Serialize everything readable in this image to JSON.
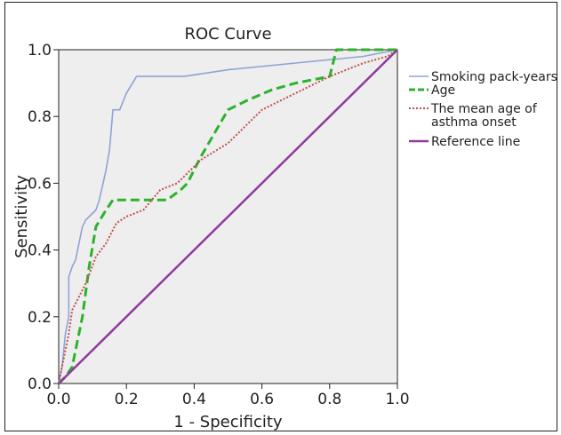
{
  "chart_data": {
    "type": "line",
    "title": "ROC Curve",
    "xlabel": "1 - Specificity",
    "ylabel": "Sensitivity",
    "xlim": [
      0,
      1
    ],
    "ylim": [
      0,
      1
    ],
    "x_ticks": [
      "0.0",
      "0.2",
      "0.4",
      "0.6",
      "0.8",
      "1.0"
    ],
    "y_ticks": [
      "0.0",
      "0.2",
      "0.4",
      "0.6",
      "0.8",
      "1.0"
    ],
    "grid": false,
    "legend_position": "right",
    "series": [
      {
        "name": "Smoking pack-years",
        "color": "#8fa3d6",
        "style": "solid",
        "x": [
          0,
          0.01,
          0.02,
          0.03,
          0.03,
          0.04,
          0.05,
          0.07,
          0.08,
          0.09,
          0.11,
          0.12,
          0.14,
          0.15,
          0.16,
          0.18,
          0.2,
          0.23,
          0.37,
          0.5,
          0.7,
          0.9,
          1.0
        ],
        "y": [
          0,
          0.05,
          0.15,
          0.2,
          0.32,
          0.35,
          0.37,
          0.47,
          0.49,
          0.5,
          0.52,
          0.55,
          0.64,
          0.7,
          0.82,
          0.82,
          0.87,
          0.92,
          0.92,
          0.94,
          0.96,
          0.98,
          1.0
        ]
      },
      {
        "name": "Age",
        "color": "#2db22d",
        "style": "dashed",
        "x": [
          0,
          0.02,
          0.04,
          0.05,
          0.07,
          0.09,
          0.11,
          0.14,
          0.16,
          0.18,
          0.23,
          0.27,
          0.32,
          0.36,
          0.38,
          0.42,
          0.46,
          0.5,
          0.56,
          0.63,
          0.7,
          0.8,
          0.82,
          0.9,
          1.0
        ],
        "y": [
          0,
          0.02,
          0.05,
          0.1,
          0.2,
          0.35,
          0.47,
          0.52,
          0.55,
          0.55,
          0.55,
          0.55,
          0.55,
          0.58,
          0.6,
          0.68,
          0.75,
          0.82,
          0.85,
          0.88,
          0.9,
          0.92,
          1.0,
          1.0,
          1.0
        ]
      },
      {
        "name": "The mean age of asthma onset",
        "color": "#c0504d",
        "style": "dotted",
        "x": [
          0,
          0.01,
          0.02,
          0.03,
          0.04,
          0.05,
          0.08,
          0.11,
          0.14,
          0.17,
          0.2,
          0.25,
          0.3,
          0.35,
          0.38,
          0.42,
          0.5,
          0.55,
          0.6,
          0.7,
          0.8,
          0.9,
          0.97,
          1.0
        ],
        "y": [
          0,
          0.05,
          0.1,
          0.15,
          0.22,
          0.24,
          0.3,
          0.38,
          0.42,
          0.48,
          0.5,
          0.52,
          0.58,
          0.6,
          0.63,
          0.67,
          0.72,
          0.77,
          0.82,
          0.87,
          0.92,
          0.96,
          0.98,
          1.0
        ]
      },
      {
        "name": "Reference line",
        "color": "#8e3a9e",
        "style": "solid",
        "x": [
          0,
          1
        ],
        "y": [
          0,
          1
        ]
      }
    ],
    "legend_labels": [
      [
        "Smoking pack-years"
      ],
      [
        "Age"
      ],
      [
        "The mean age of",
        "asthma onset"
      ],
      [
        "Reference line"
      ]
    ]
  }
}
